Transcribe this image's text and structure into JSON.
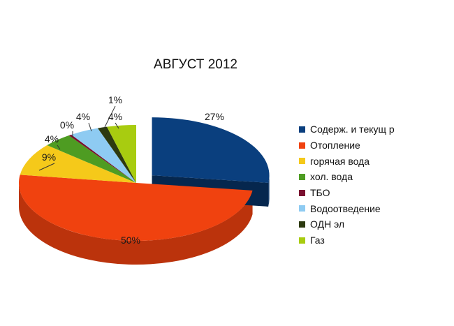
{
  "chart_data": {
    "type": "pie",
    "title": "АВГУСТ 2012",
    "categories": [
      "Содерж. и текущ р",
      "Отопление",
      "горячая вода",
      "хол. вода",
      "ТБО",
      "Водоотведение",
      "ОДН эл",
      "Газ"
    ],
    "values": [
      27,
      50,
      9,
      4,
      0.4,
      4,
      1.3,
      4
    ],
    "data_labels": [
      "27%",
      "50%",
      "9%",
      "4%",
      "0%",
      "4%",
      "1%",
      "4%"
    ],
    "colors": [
      "#0a3f7e",
      "#f0420f",
      "#f5c91a",
      "#4e9c22",
      "#7a1030",
      "#8ecbf2",
      "#2d3a10",
      "#a8cc10"
    ],
    "exploded_slice": "Содерж. и текущ р",
    "style": "3d",
    "legend_position": "right"
  }
}
